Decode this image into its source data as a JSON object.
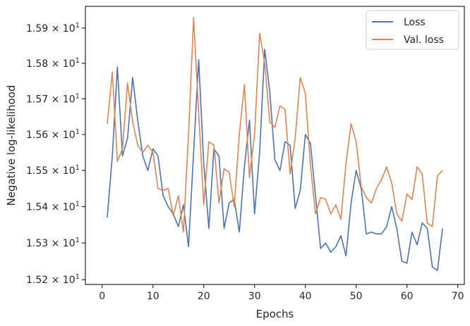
{
  "chart_data": {
    "type": "line",
    "xlabel": "Epochs",
    "ylabel": "Negative log-likelihood",
    "xlim": [
      -3.3,
      71.3
    ],
    "ylim": [
      15.187,
      15.962
    ],
    "y_scale": "log",
    "x_ticks": [
      0,
      10,
      20,
      30,
      40,
      50,
      60,
      70
    ],
    "x_tick_labels": [
      "0",
      "10",
      "20",
      "30",
      "40",
      "50",
      "60",
      "70"
    ],
    "y_ticks": [
      15.2,
      15.3,
      15.4,
      15.5,
      15.6,
      15.7,
      15.8,
      15.9
    ],
    "y_tick_mantissas": [
      "1.52",
      "1.53",
      "1.54",
      "1.55",
      "1.56",
      "1.57",
      "1.58",
      "1.59"
    ],
    "y_tick_base": "10",
    "y_tick_exponent": "1",
    "y_tick_times": "×",
    "grid": false,
    "legend_position": "top-right",
    "series": [
      {
        "name": "Loss",
        "color": "#4c72b0",
        "x": [
          1,
          2,
          3,
          4,
          5,
          6,
          7,
          8,
          9,
          10,
          11,
          12,
          13,
          14,
          15,
          16,
          17,
          18,
          19,
          20,
          21,
          22,
          23,
          24,
          25,
          26,
          27,
          28,
          29,
          30,
          31,
          32,
          33,
          34,
          35,
          36,
          37,
          38,
          39,
          40,
          41,
          42,
          43,
          44,
          45,
          46,
          47,
          48,
          49,
          50,
          51,
          52,
          53,
          54,
          55,
          56,
          57,
          58,
          59,
          60,
          61,
          62,
          63,
          64,
          65,
          66,
          67
        ],
        "values": [
          15.37,
          15.54,
          15.79,
          15.54,
          15.59,
          15.76,
          15.64,
          15.54,
          15.5,
          15.56,
          15.54,
          15.43,
          15.4,
          15.38,
          15.345,
          15.405,
          15.29,
          15.55,
          15.81,
          15.52,
          15.34,
          15.56,
          15.54,
          15.34,
          15.41,
          15.42,
          15.33,
          15.51,
          15.64,
          15.38,
          15.55,
          15.84,
          15.72,
          15.53,
          15.5,
          15.58,
          15.57,
          15.395,
          15.445,
          15.6,
          15.575,
          15.43,
          15.285,
          15.3,
          15.275,
          15.29,
          15.32,
          15.265,
          15.41,
          15.5,
          15.45,
          15.325,
          15.33,
          15.325,
          15.325,
          15.345,
          15.4,
          15.34,
          15.25,
          15.245,
          15.33,
          15.295,
          15.355,
          15.34,
          15.235,
          15.225,
          15.34
        ]
      },
      {
        "name": "Val. loss",
        "color": "#dd8452",
        "x": [
          1,
          2,
          3,
          4,
          5,
          6,
          7,
          8,
          9,
          10,
          11,
          12,
          13,
          14,
          15,
          16,
          17,
          18,
          19,
          20,
          21,
          22,
          23,
          24,
          25,
          26,
          27,
          28,
          29,
          30,
          31,
          32,
          33,
          34,
          35,
          36,
          37,
          38,
          39,
          40,
          41,
          42,
          43,
          44,
          45,
          46,
          47,
          48,
          49,
          50,
          51,
          52,
          53,
          54,
          55,
          56,
          57,
          58,
          59,
          60,
          61,
          62,
          63,
          64,
          65,
          66,
          67
        ],
        "values": [
          15.63,
          15.775,
          15.525,
          15.56,
          15.745,
          15.635,
          15.57,
          15.55,
          15.57,
          15.55,
          15.45,
          15.445,
          15.45,
          15.375,
          15.43,
          15.33,
          15.6,
          15.93,
          15.66,
          15.405,
          15.58,
          15.57,
          15.41,
          15.505,
          15.495,
          15.4,
          15.6,
          15.74,
          15.48,
          15.6,
          15.885,
          15.8,
          15.635,
          15.62,
          15.68,
          15.67,
          15.49,
          15.59,
          15.76,
          15.715,
          15.515,
          15.38,
          15.425,
          15.42,
          15.38,
          15.405,
          15.365,
          15.52,
          15.63,
          15.58,
          15.455,
          15.425,
          15.41,
          15.45,
          15.475,
          15.51,
          15.465,
          15.38,
          15.36,
          15.435,
          15.42,
          15.51,
          15.49,
          15.355,
          15.345,
          15.485,
          15.5
        ]
      }
    ]
  }
}
